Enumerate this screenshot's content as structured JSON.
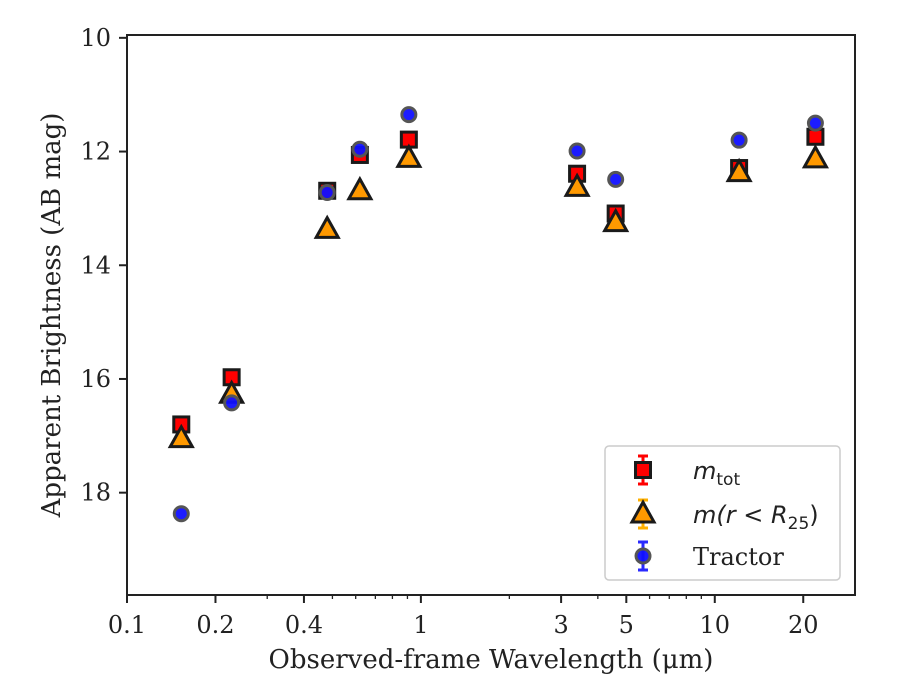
{
  "chart_data": {
    "type": "scatter",
    "xlabel": "Observed-frame Wavelength (μm)",
    "ylabel": "Apparent Brightness (AB mag)",
    "x_scale": "log",
    "xlim": [
      0.1,
      30
    ],
    "ylim": [
      19.8,
      9.95
    ],
    "y_inverted": true,
    "grid": false,
    "legend_position": "lower-right",
    "x_ticks": [
      {
        "value": 0.1,
        "label": "0.1"
      },
      {
        "value": 0.2,
        "label": "0.2"
      },
      {
        "value": 0.4,
        "label": "0.4"
      },
      {
        "value": 1,
        "label": "1"
      },
      {
        "value": 3,
        "label": "3"
      },
      {
        "value": 5,
        "label": "5"
      },
      {
        "value": 10,
        "label": "10"
      },
      {
        "value": 20,
        "label": "20"
      }
    ],
    "y_ticks": [
      {
        "value": 10,
        "label": "10"
      },
      {
        "value": 12,
        "label": "12"
      },
      {
        "value": 14,
        "label": "14"
      },
      {
        "value": 16,
        "label": "16"
      },
      {
        "value": 18,
        "label": "18"
      }
    ],
    "series": [
      {
        "name": "m_tot",
        "legend_main": "m",
        "legend_sub": "tot",
        "marker": "square",
        "color": "#ff0000",
        "errorbar_color": "#ff0000",
        "points": [
          {
            "x": 0.153,
            "y": 16.8
          },
          {
            "x": 0.227,
            "y": 15.97
          },
          {
            "x": 0.48,
            "y": 12.69
          },
          {
            "x": 0.62,
            "y": 12.06
          },
          {
            "x": 0.91,
            "y": 11.79
          },
          {
            "x": 3.4,
            "y": 12.39
          },
          {
            "x": 4.6,
            "y": 13.09
          },
          {
            "x": 12.1,
            "y": 12.29
          },
          {
            "x": 22.0,
            "y": 11.74
          }
        ]
      },
      {
        "name": "m(r < R_25)",
        "legend_main": "m(r < R",
        "legend_sub": "25",
        "legend_close": ")",
        "marker": "triangle",
        "color": "#ff9900",
        "errorbar_color": "#ffb000",
        "points": [
          {
            "x": 0.153,
            "y": 17.05
          },
          {
            "x": 0.227,
            "y": 16.27
          },
          {
            "x": 0.48,
            "y": 13.37
          },
          {
            "x": 0.62,
            "y": 12.69
          },
          {
            "x": 0.91,
            "y": 12.12
          },
          {
            "x": 3.4,
            "y": 12.63
          },
          {
            "x": 4.6,
            "y": 13.25
          },
          {
            "x": 12.1,
            "y": 12.37
          },
          {
            "x": 22.0,
            "y": 12.13
          }
        ]
      },
      {
        "name": "Tractor",
        "legend_main": "Tractor",
        "marker": "circle",
        "color": "#1010ff",
        "errorbar_color": "#2a2aff",
        "points": [
          {
            "x": 0.153,
            "y": 18.37
          },
          {
            "x": 0.227,
            "y": 16.42
          },
          {
            "x": 0.48,
            "y": 12.72
          },
          {
            "x": 0.62,
            "y": 11.96
          },
          {
            "x": 0.91,
            "y": 11.35
          },
          {
            "x": 3.4,
            "y": 11.99
          },
          {
            "x": 4.6,
            "y": 12.49
          },
          {
            "x": 12.1,
            "y": 11.8
          },
          {
            "x": 22.0,
            "y": 11.5
          }
        ]
      }
    ]
  }
}
